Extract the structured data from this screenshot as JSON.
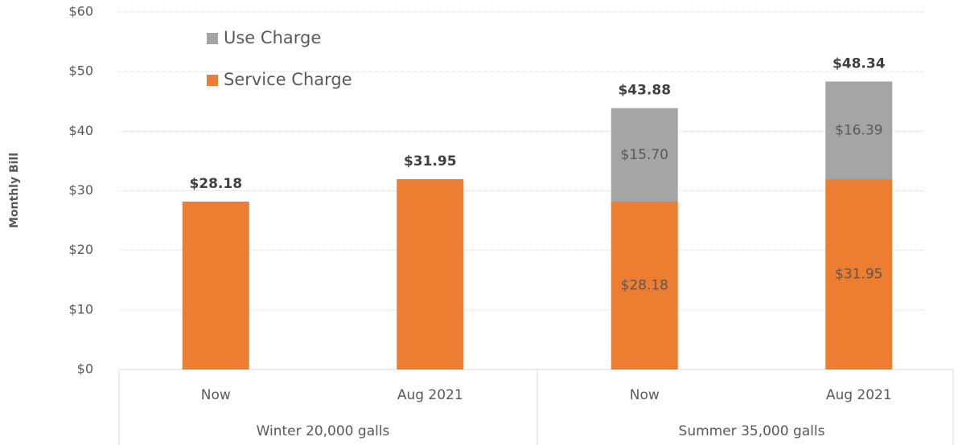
{
  "chart_data": {
    "type": "stacked_bar",
    "y_label": "Monthly Bill",
    "categories": [
      "Now",
      "Aug 2021",
      "Now",
      "Aug 2021"
    ],
    "groups": [
      {
        "name": "Winter 20,000 galls",
        "span": 2
      },
      {
        "name": "Summer 35,000 galls",
        "span": 2
      }
    ],
    "series": [
      {
        "name": "Service Charge",
        "color": "#ed7d31",
        "values": [
          28.18,
          31.95,
          28.18,
          31.95
        ],
        "value_labels": [
          null,
          null,
          "$28.18",
          "$31.95"
        ]
      },
      {
        "name": "Use Charge",
        "color": "#a5a5a5",
        "values": [
          null,
          null,
          15.7,
          16.39
        ],
        "value_labels": [
          null,
          null,
          "$15.70",
          "$16.39"
        ]
      }
    ],
    "total_labels": [
      "$28.18",
      "$31.95",
      "$43.88",
      "$48.34"
    ],
    "ylim": [
      0,
      60
    ],
    "yticks": [
      {
        "value": 0,
        "label": "$0"
      },
      {
        "value": 10,
        "label": "$10"
      },
      {
        "value": 20,
        "label": "$20"
      },
      {
        "value": 30,
        "label": "$30"
      },
      {
        "value": 40,
        "label": "$40"
      },
      {
        "value": 50,
        "label": "$50"
      },
      {
        "value": 60,
        "label": "$60"
      }
    ],
    "grid": true,
    "legend": "top-left"
  }
}
